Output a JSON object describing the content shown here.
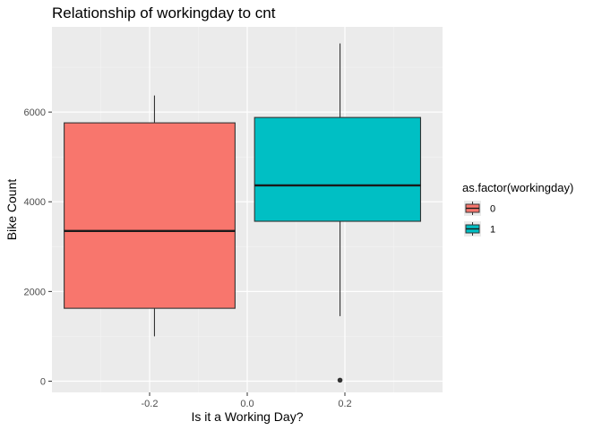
{
  "chart_data": {
    "type": "boxplot",
    "title": "Relationship of workingday to cnt",
    "xlabel": "Is it a Working Day?",
    "ylabel": "Bike Count",
    "xlim": [
      -0.4,
      0.4
    ],
    "ylim": [
      -250,
      7900
    ],
    "x_ticks": [
      -0.2,
      0.0,
      0.2
    ],
    "x_tick_labels": [
      "-0.2",
      "0.0",
      "0.2"
    ],
    "y_ticks": [
      0,
      2000,
      4000,
      6000
    ],
    "y_tick_labels": [
      "0",
      "2000",
      "4000",
      "6000"
    ],
    "grid": true,
    "legend": {
      "title": "as.factor(workingday)",
      "position": "right",
      "entries": [
        "0",
        "1"
      ]
    },
    "series": [
      {
        "name": "0",
        "color": "#F8766D",
        "x_range": [
          -0.375,
          -0.025
        ],
        "whisker_x": -0.19,
        "min": 1000,
        "q1": 1625,
        "median": 3350,
        "q3": 5760,
        "max": 6370,
        "outliers": []
      },
      {
        "name": "1",
        "color": "#00BFC4",
        "x_range": [
          0.015,
          0.355
        ],
        "whisker_x": 0.19,
        "min": 1450,
        "q1": 3565,
        "median": 4365,
        "q3": 5880,
        "max": 7530,
        "outliers": [
          22
        ]
      }
    ]
  }
}
